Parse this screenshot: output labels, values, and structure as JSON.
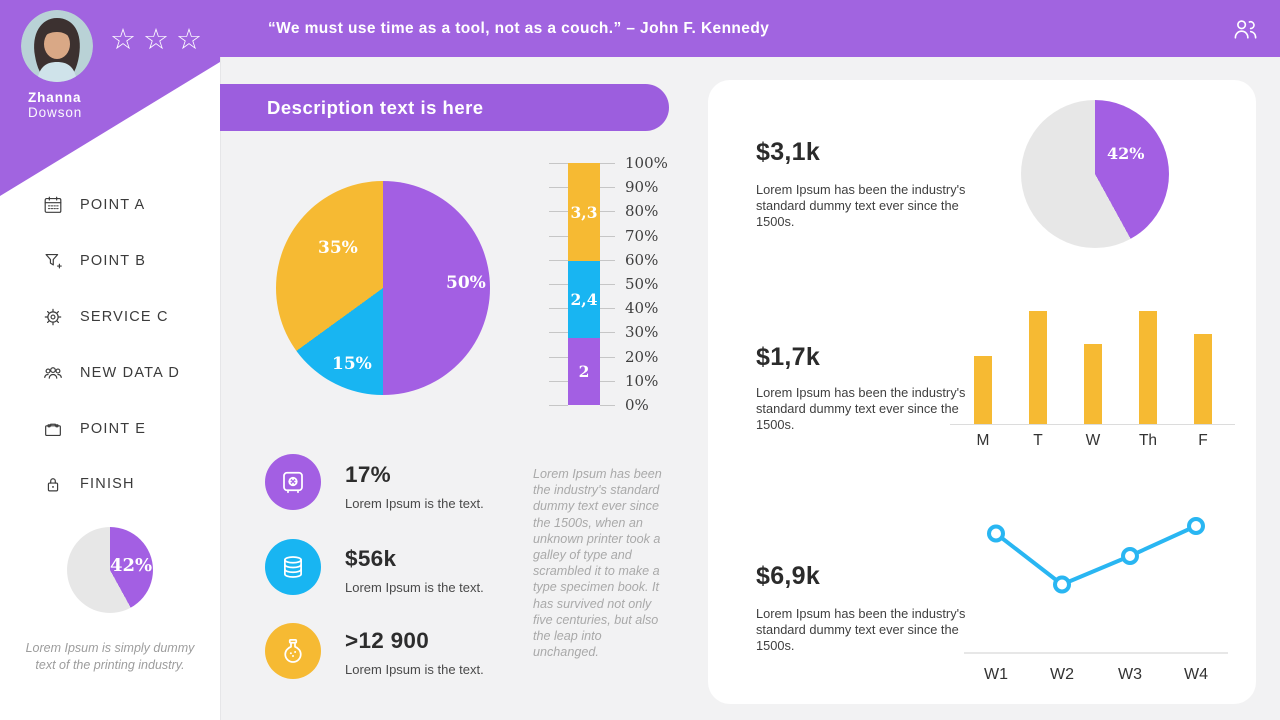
{
  "colors": {
    "purple": "#a164e0",
    "pie_purple": "#a35fe3",
    "cyan": "#18b5f2",
    "yellow": "#f6ba33",
    "pie_gray": "#e7e7e7",
    "background": "#f2f2f3",
    "card": "#ffffff"
  },
  "topbar": {
    "quote": "“We must use time as a tool, not as a couch.” – John F. Kennedy"
  },
  "sidebar": {
    "profile": {
      "first_name": "Zhanna",
      "last_name": "Dowson",
      "stars": "☆☆☆"
    },
    "menu": [
      {
        "icon": "calendar-icon",
        "label": "POINT A"
      },
      {
        "icon": "funnel-icon",
        "label": "POINT B"
      },
      {
        "icon": "gear-icon",
        "label": "SERVICE C"
      },
      {
        "icon": "users-icon",
        "label": "NEW DATA D"
      },
      {
        "icon": "briefcase-icon",
        "label": "POINT E"
      },
      {
        "icon": "lock-icon",
        "label": "FINISH"
      }
    ],
    "caption": "Lorem Ipsum is simply dummy text of the printing industry."
  },
  "main": {
    "banner": "Description text is here",
    "stats": [
      {
        "icon": "safe-icon",
        "value": "17%",
        "label": "Lorem Ipsum is the text.",
        "color": "#a35fe3"
      },
      {
        "icon": "database-icon",
        "value": "$56k",
        "label": "Lorem Ipsum is the text.",
        "color": "#18b5f2"
      },
      {
        "icon": "flask-icon",
        "value": ">12 900",
        "label": "Lorem Ipsum is the text.",
        "color": "#f6ba33"
      }
    ],
    "side_note": "Lorem Ipsum has been the industry's standard dummy text ever since the 1500s, when an unknown printer took a galley of type and scrambled it to make a type specimen book. It has survived not only five centuries, but also the leap into unchanged."
  },
  "card": {
    "sections": [
      {
        "value": "$3,1k",
        "text": "Lorem Ipsum has been the industry's standard dummy text ever since the 1500s."
      },
      {
        "value": "$1,7k",
        "text": "Lorem Ipsum has been the industry's standard dummy text ever since the 1500s."
      },
      {
        "value": "$6,9k",
        "text": "Lorem Ipsum has been the industry's standard dummy text ever since the 1500s."
      }
    ]
  },
  "chart_data": [
    {
      "id": "distribution-pie",
      "type": "pie",
      "labels": [
        "50%",
        "15%",
        "35%"
      ],
      "values": [
        50,
        15,
        35
      ],
      "colors": [
        "#a35fe3",
        "#18b5f2",
        "#f6ba33"
      ],
      "start": "top",
      "direction": "clockwise"
    },
    {
      "id": "stacked-percentage-bar",
      "type": "bar",
      "stacked": true,
      "segments": [
        {
          "label": "3,3",
          "value": 3.3,
          "color": "#f6ba33"
        },
        {
          "label": "2,4",
          "value": 2.4,
          "color": "#18b5f2"
        },
        {
          "label": "2",
          "value": 2.0,
          "color": "#a35fe3"
        }
      ],
      "axis_ticks": [
        "100%",
        "90%",
        "80%",
        "70%",
        "60%",
        "50%",
        "40%",
        "30%",
        "20%",
        "10%",
        "0%"
      ],
      "ylim": [
        0,
        100
      ]
    },
    {
      "id": "sidebar-pie",
      "type": "pie",
      "labels": [
        "42%",
        ""
      ],
      "values": [
        42,
        58
      ],
      "colors": [
        "#a35fe3",
        "#e7e7e7"
      ],
      "start": "top",
      "direction": "clockwise"
    },
    {
      "id": "card-pie",
      "type": "pie",
      "labels": [
        "42%",
        ""
      ],
      "values": [
        42,
        58
      ],
      "colors": [
        "#a35fe3",
        "#e7e7e7"
      ],
      "start": "top",
      "direction": "clockwise"
    },
    {
      "id": "weekday-bars",
      "type": "bar",
      "categories": [
        "M",
        "T",
        "W",
        "Th",
        "F"
      ],
      "values": [
        60,
        100,
        71,
        100,
        80
      ],
      "color": "#f6ba33",
      "ylabel": "relative height (% of max)"
    },
    {
      "id": "weekly-line",
      "type": "line",
      "categories": [
        "W1",
        "W2",
        "W3",
        "W4"
      ],
      "values": [
        81,
        47,
        66,
        86
      ],
      "color": "#29b6f2",
      "ylabel": "relative height (% of range)"
    }
  ]
}
